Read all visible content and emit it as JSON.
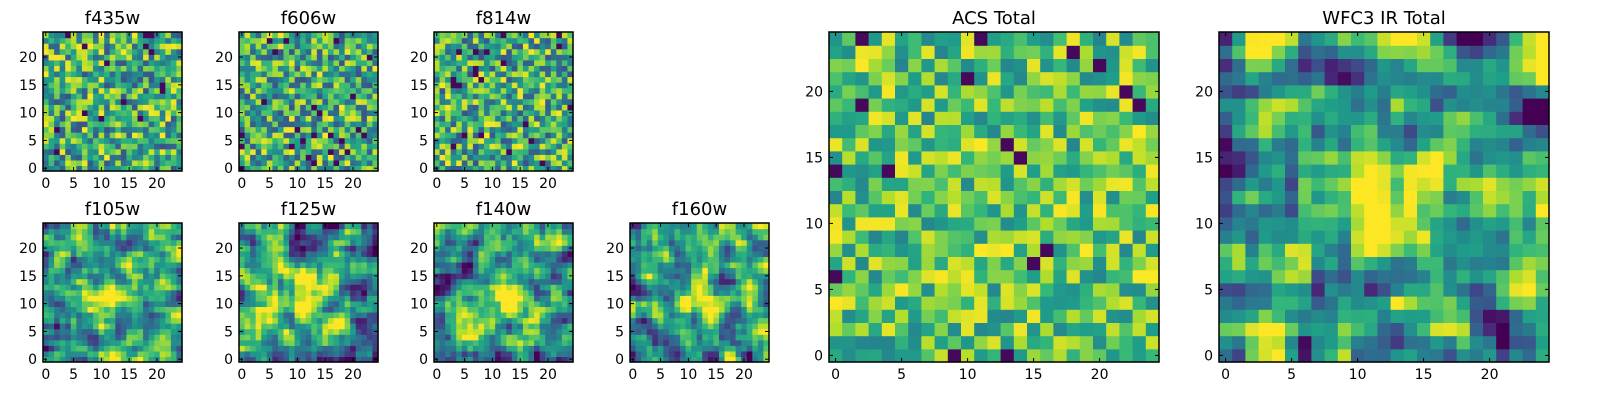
{
  "colormap": "viridis",
  "colors": {
    "dark": "#440154",
    "mid": "#21918c",
    "bright": "#fde725",
    "axis": "#000000",
    "background": "#ffffff"
  },
  "chart_data": [
    {
      "type": "heatmap",
      "title": "f435w",
      "grid_size": 25,
      "xlim": [
        0,
        24
      ],
      "ylim": [
        0,
        24
      ],
      "xticks": [
        "0",
        "5",
        "10",
        "15",
        "20"
      ],
      "yticks": [
        "0",
        "5",
        "10",
        "15",
        "20"
      ],
      "pattern": "noise",
      "seed": 11
    },
    {
      "type": "heatmap",
      "title": "f606w",
      "grid_size": 25,
      "xlim": [
        0,
        24
      ],
      "ylim": [
        0,
        24
      ],
      "xticks": [
        "0",
        "5",
        "10",
        "15",
        "20"
      ],
      "yticks": [
        "0",
        "5",
        "10",
        "15",
        "20"
      ],
      "pattern": "noise",
      "seed": 23
    },
    {
      "type": "heatmap",
      "title": "f814w",
      "grid_size": 25,
      "xlim": [
        0,
        24
      ],
      "ylim": [
        0,
        24
      ],
      "xticks": [
        "0",
        "5",
        "10",
        "15",
        "20"
      ],
      "yticks": [
        "0",
        "5",
        "10",
        "15",
        "20"
      ],
      "pattern": "noise",
      "seed": 37
    },
    {
      "type": "heatmap",
      "title": "f105w",
      "grid_size": 25,
      "xlim": [
        0,
        24
      ],
      "ylim": [
        0,
        24
      ],
      "xticks": [
        "0",
        "5",
        "10",
        "15",
        "20"
      ],
      "yticks": [
        "0",
        "5",
        "10",
        "15",
        "20"
      ],
      "pattern": "blob",
      "seed": 41
    },
    {
      "type": "heatmap",
      "title": "f125w",
      "grid_size": 25,
      "xlim": [
        0,
        24
      ],
      "ylim": [
        0,
        24
      ],
      "xticks": [
        "0",
        "5",
        "10",
        "15",
        "20"
      ],
      "yticks": [
        "0",
        "5",
        "10",
        "15",
        "20"
      ],
      "pattern": "blob",
      "seed": 53
    },
    {
      "type": "heatmap",
      "title": "f140w",
      "grid_size": 25,
      "xlim": [
        0,
        24
      ],
      "ylim": [
        0,
        24
      ],
      "xticks": [
        "0",
        "5",
        "10",
        "15",
        "20"
      ],
      "yticks": [
        "0",
        "5",
        "10",
        "15",
        "20"
      ],
      "pattern": "blob",
      "seed": 67
    },
    {
      "type": "heatmap",
      "title": "f160w",
      "grid_size": 25,
      "xlim": [
        0,
        24
      ],
      "ylim": [
        0,
        24
      ],
      "xticks": [
        "0",
        "5",
        "10",
        "15",
        "20"
      ],
      "yticks": [
        "0",
        "5",
        "10",
        "15",
        "20"
      ],
      "pattern": "blob",
      "seed": 79
    },
    {
      "type": "heatmap",
      "title": "ACS Total",
      "grid_size": 25,
      "xlim": [
        0,
        24
      ],
      "ylim": [
        0,
        24
      ],
      "xticks": [
        "0",
        "5",
        "10",
        "15",
        "20"
      ],
      "yticks": [
        "0",
        "5",
        "10",
        "15",
        "20"
      ],
      "pattern": "noise-bright",
      "seed": 97
    },
    {
      "type": "heatmap",
      "title": "WFC3 IR Total",
      "grid_size": 25,
      "xlim": [
        0,
        24
      ],
      "ylim": [
        0,
        24
      ],
      "xticks": [
        "0",
        "5",
        "10",
        "15",
        "20"
      ],
      "yticks": [
        "0",
        "5",
        "10",
        "15",
        "20"
      ],
      "pattern": "blob-strong",
      "seed": 113
    }
  ]
}
